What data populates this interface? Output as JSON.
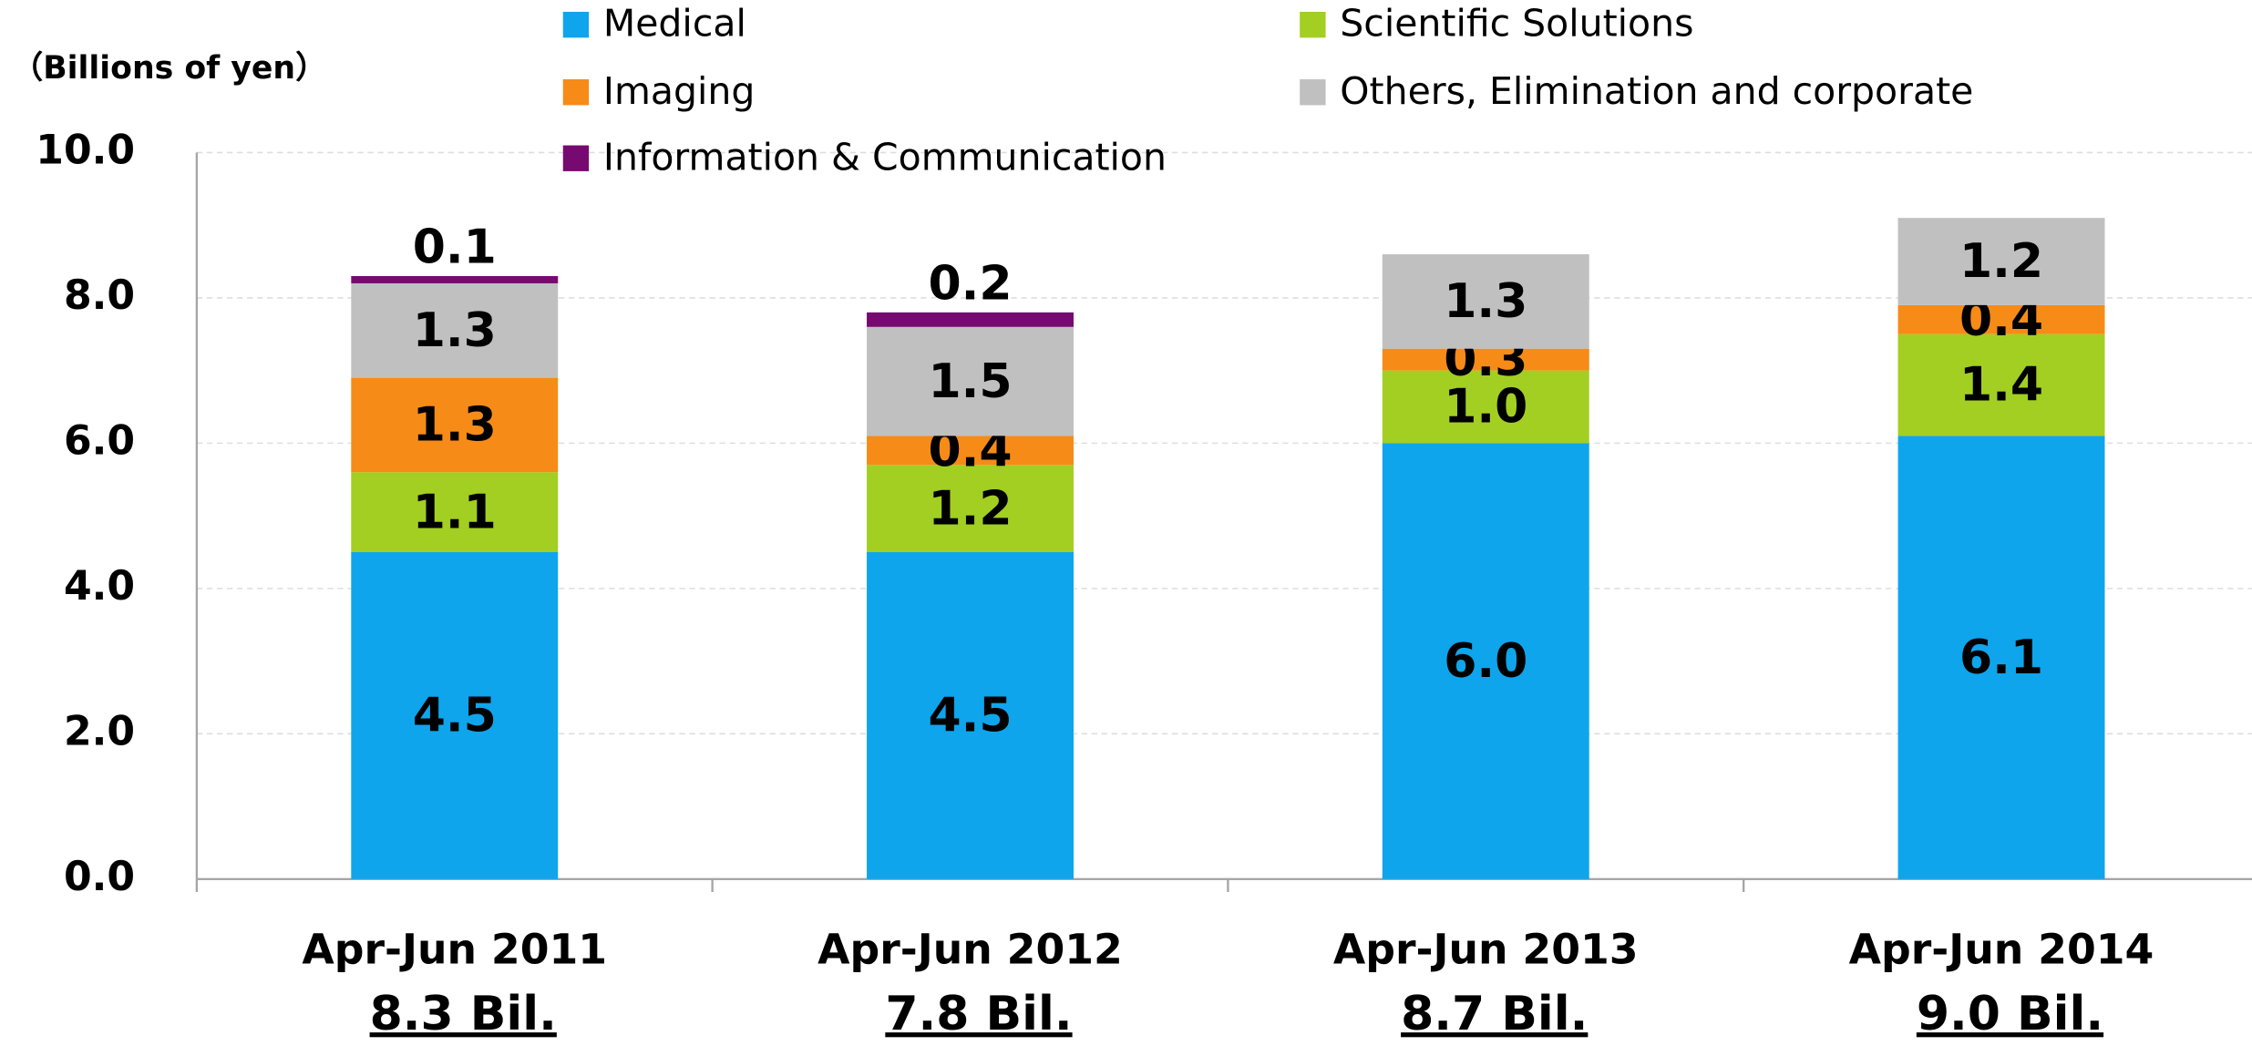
{
  "chart_data": {
    "type": "stacked_bar",
    "y_label": "（Billions of yen）",
    "categories": [
      "Apr-Jun 2011",
      "Apr-Jun 2012",
      "Apr-Jun 2013",
      "Apr-Jun 2014"
    ],
    "total_labels": [
      "8.3 Bil.",
      "7.8 Bil.",
      "8.7 Bil.",
      "9.0 Bil."
    ],
    "series": [
      {
        "name": "Medical",
        "color": "#0ea5ec",
        "values": [
          4.5,
          4.5,
          6.0,
          6.1
        ],
        "value_labels": [
          "4.5",
          "4.5",
          "6.0",
          "6.1"
        ]
      },
      {
        "name": "Scientific Solutions",
        "color": "#a2cf22",
        "values": [
          1.1,
          1.2,
          1.0,
          1.4
        ],
        "value_labels": [
          "1.1",
          "1.2",
          "1.0",
          "1.4"
        ]
      },
      {
        "name": "Imaging",
        "color": "#f68b17",
        "values": [
          1.3,
          0.4,
          0.3,
          0.4
        ],
        "value_labels": [
          "1.3",
          "0.4",
          "0.3",
          "0.4"
        ]
      },
      {
        "name": "Others, Elimination and corporate",
        "color": "#c0c0c0",
        "values": [
          1.3,
          1.5,
          1.3,
          1.2
        ],
        "value_labels": [
          "1.3",
          "1.5",
          "1.3",
          "1.2"
        ]
      },
      {
        "name": "Information & Communication",
        "color": "#760a70",
        "values": [
          0.1,
          0.2,
          null,
          null
        ],
        "value_labels": [
          "0.1",
          "0.2",
          null,
          null
        ]
      }
    ],
    "ylim": [
      0,
      10
    ],
    "yticks": [
      {
        "value": 0,
        "label": "0.0"
      },
      {
        "value": 2,
        "label": "2.0"
      },
      {
        "value": 4,
        "label": "4.0"
      },
      {
        "value": 6,
        "label": "6.0"
      },
      {
        "value": 8,
        "label": "8.0"
      },
      {
        "value": 10,
        "label": "10.0"
      }
    ],
    "grid": true
  }
}
